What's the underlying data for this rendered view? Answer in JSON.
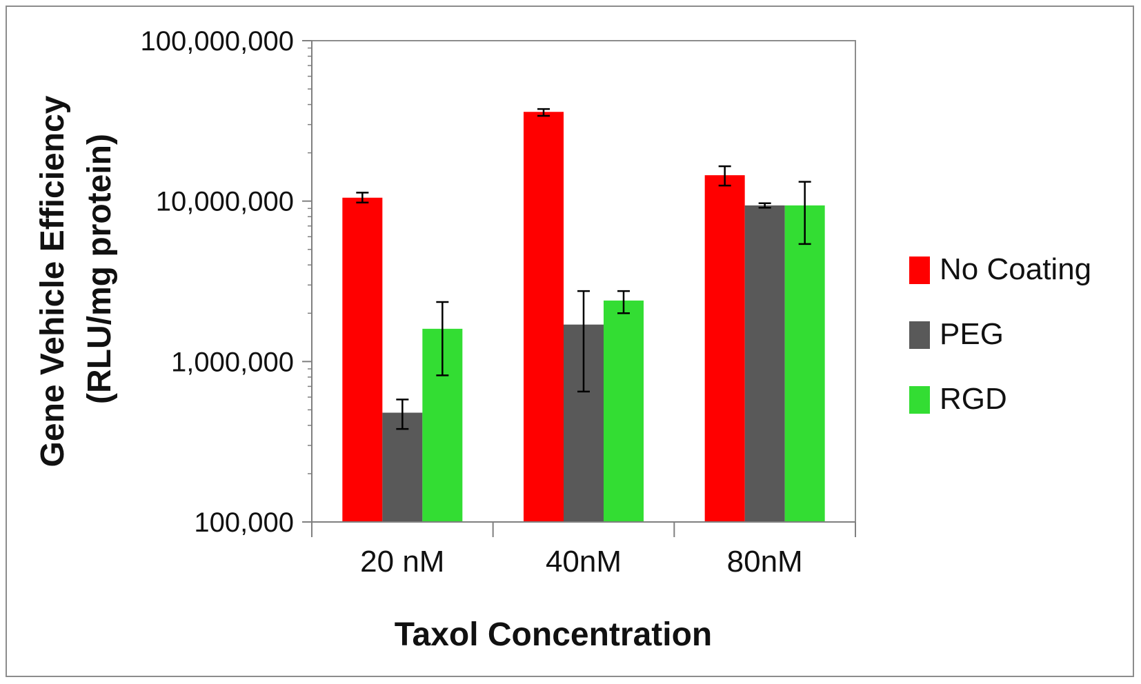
{
  "chart_data": {
    "type": "bar",
    "title": "",
    "xlabel": "Taxol Concentration",
    "ylabel_line1": "Gene Vehicle Efficiency",
    "ylabel_line2": "(RLU/mg protein)",
    "yscale": "log",
    "ylim": [
      100000,
      100000000
    ],
    "yticks": [
      100000,
      1000000,
      10000000,
      100000000
    ],
    "ytick_labels": [
      "100,000",
      "1,000,000",
      "10,000,000",
      "100,000,000"
    ],
    "categories": [
      "20 nM",
      "40nM",
      "80nM"
    ],
    "series": [
      {
        "name": "No Coating",
        "color": "#ff0000",
        "values": [
          10500000,
          36000000,
          14500000
        ],
        "err_low": [
          9800000,
          34000000,
          12500000
        ],
        "err_high": [
          11300000,
          37500000,
          16500000
        ]
      },
      {
        "name": "PEG",
        "color": "#595959",
        "values": [
          480000,
          1700000,
          9400000
        ],
        "err_low": [
          380000,
          650000,
          9100000
        ],
        "err_high": [
          580000,
          2750000,
          9700000
        ]
      },
      {
        "name": "RGD",
        "color": "#33dd33",
        "values": [
          1600000,
          2400000,
          9400000
        ],
        "err_low": [
          820000,
          2000000,
          5400000
        ],
        "err_high": [
          2350000,
          2750000,
          13200000
        ]
      }
    ],
    "legend_position": "right",
    "grid": false
  }
}
